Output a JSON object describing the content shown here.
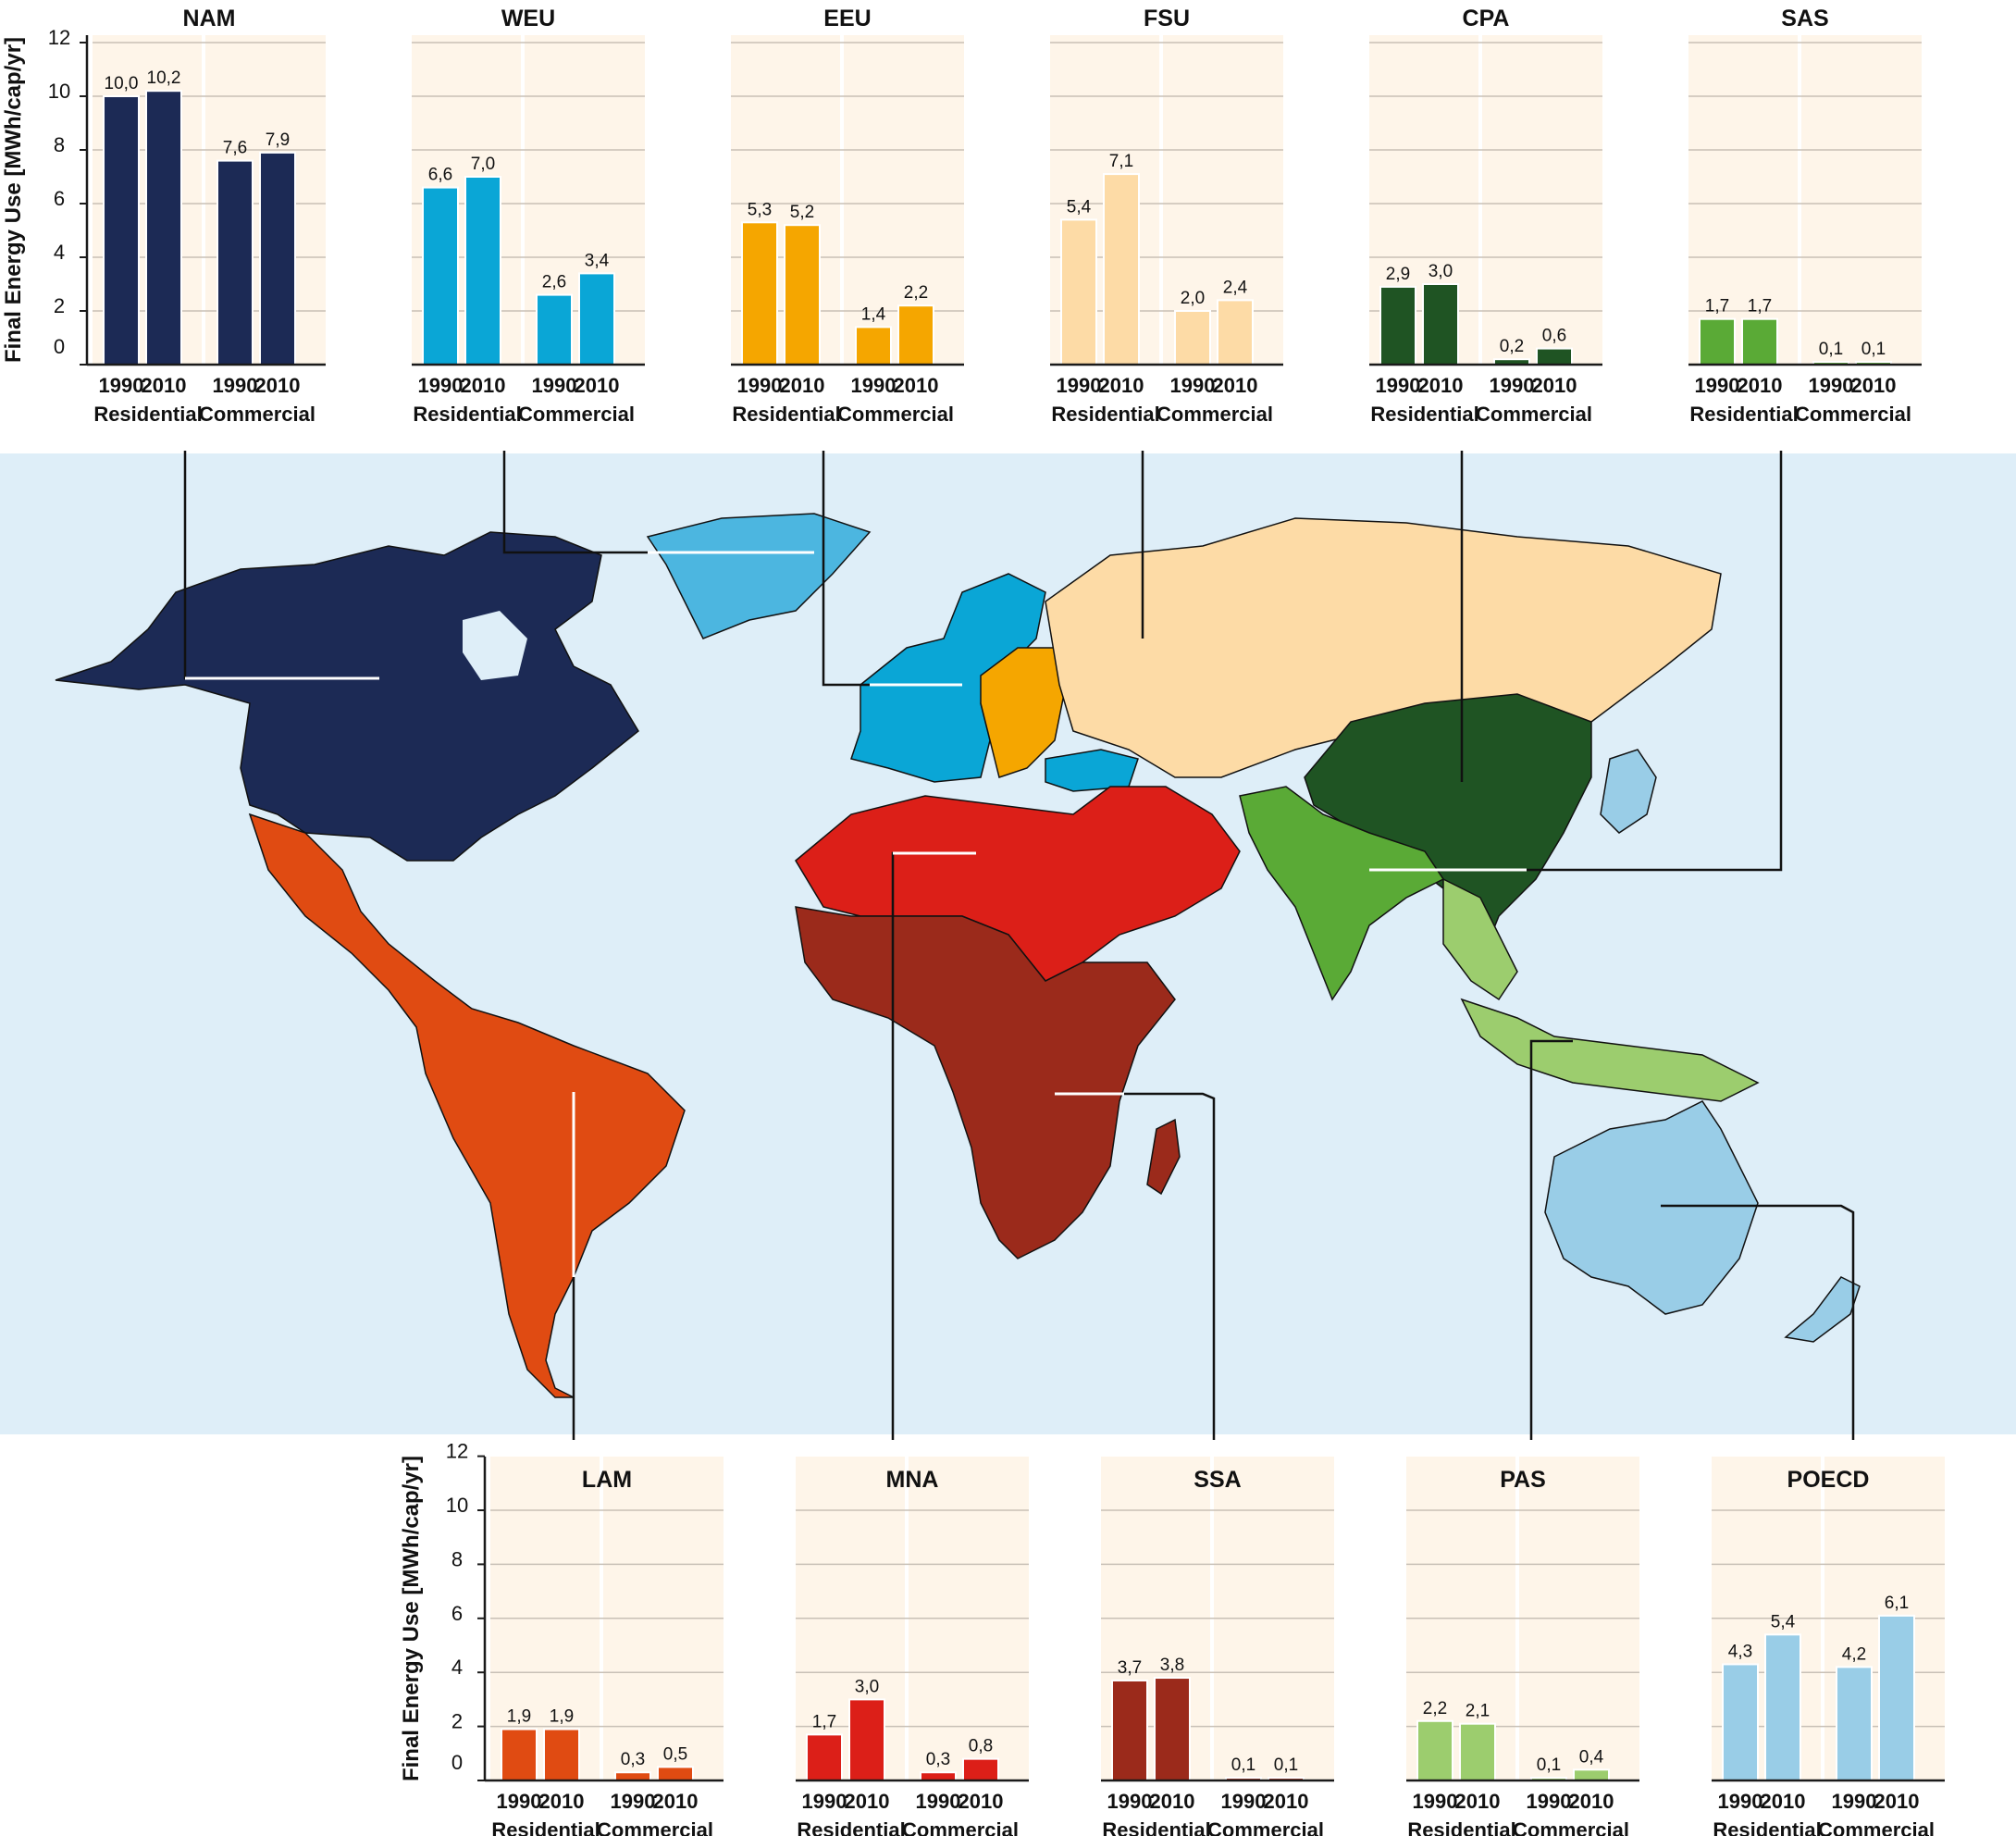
{
  "chart_data": {
    "type": "bar",
    "ylabel": "Final Energy Use [MWh/cap/yr]",
    "ylim": [
      0,
      12
    ],
    "yticks": [
      "0",
      "2",
      "4",
      "6",
      "8",
      "10",
      "12"
    ],
    "year_labels": [
      "1990",
      "2010"
    ],
    "sector_labels": [
      "Residential",
      "Commercial"
    ],
    "regions": [
      {
        "name": "NAM",
        "color": "#1c2a55",
        "values": [
          10.0,
          10.2,
          7.6,
          7.9
        ],
        "labels": [
          "10,0",
          "10,2",
          "7,6",
          "7,9"
        ]
      },
      {
        "name": "WEU",
        "color": "#0aa6d6",
        "values": [
          6.6,
          7.0,
          2.6,
          3.4
        ],
        "labels": [
          "6,6",
          "7,0",
          "2,6",
          "3,4"
        ]
      },
      {
        "name": "EEU",
        "color": "#f5a600",
        "values": [
          5.3,
          5.2,
          1.4,
          2.2
        ],
        "labels": [
          "5,3",
          "5,2",
          "1,4",
          "2,2"
        ]
      },
      {
        "name": "FSU",
        "color": "#fddba6",
        "values": [
          5.4,
          7.1,
          2.0,
          2.4
        ],
        "labels": [
          "5,4",
          "7,1",
          "2,0",
          "2,4"
        ]
      },
      {
        "name": "CPA",
        "color": "#1f5423",
        "values": [
          2.9,
          3.0,
          0.2,
          0.6
        ],
        "labels": [
          "2,9",
          "3,0",
          "0,2",
          "0,6"
        ]
      },
      {
        "name": "SAS",
        "color": "#5aaa36",
        "values": [
          1.7,
          1.7,
          0.1,
          0.1
        ],
        "labels": [
          "1,7",
          "1,7",
          "0,1",
          "0,1"
        ]
      },
      {
        "name": "LAM",
        "color": "#e04b12",
        "values": [
          1.9,
          1.9,
          0.3,
          0.5
        ],
        "labels": [
          "1,9",
          "1,9",
          "0,3",
          "0,5"
        ]
      },
      {
        "name": "MNA",
        "color": "#dc1f18",
        "values": [
          1.7,
          3.0,
          0.3,
          0.8
        ],
        "labels": [
          "1,7",
          "3,0",
          "0,3",
          "0,8"
        ]
      },
      {
        "name": "SSA",
        "color": "#9b2a1b",
        "values": [
          3.7,
          3.8,
          0.1,
          0.1
        ],
        "labels": [
          "3,7",
          "3,8",
          "0,1",
          "0,1"
        ]
      },
      {
        "name": "PAS",
        "color": "#9ccd6e",
        "values": [
          2.2,
          2.1,
          0.1,
          0.4
        ],
        "labels": [
          "2,2",
          "2,1",
          "0,1",
          "0,4"
        ]
      },
      {
        "name": "POECD",
        "color": "#99cde7",
        "values": [
          4.3,
          5.4,
          4.2,
          6.1
        ],
        "labels": [
          "4,3",
          "5,4",
          "4,2",
          "6,1"
        ]
      }
    ]
  },
  "colors": {
    "panel_bg": "#fef5e9",
    "ocean": "#deeef8",
    "grid": "#c8c0b6",
    "axis": "#1a1a1a"
  }
}
